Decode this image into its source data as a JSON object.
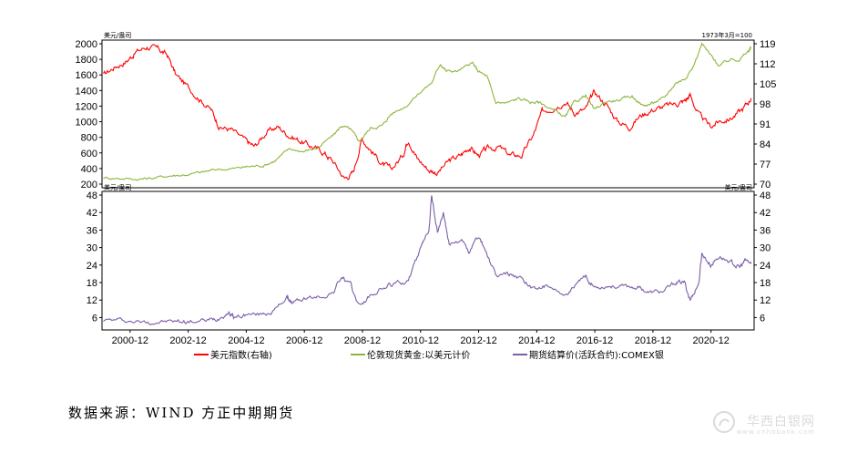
{
  "chart_data": [
    {
      "type": "line",
      "panel": "top",
      "left_unit": "美元/盎司",
      "right_unit": "1973年3月=100",
      "left_ylim": [
        200,
        2000
      ],
      "left_ticks": [
        200,
        400,
        600,
        800,
        1000,
        1200,
        1400,
        1600,
        1800,
        2000
      ],
      "right_ylim": [
        70,
        119
      ],
      "right_ticks": [
        70,
        77,
        84,
        91,
        98,
        105,
        112,
        119
      ],
      "series": [
        {
          "name": "美元指数(右轴)",
          "axis": "right",
          "color": "#ff0000",
          "points": [
            [
              2000.0,
              108
            ],
            [
              2000.4,
              111
            ],
            [
              2000.8,
              113
            ],
            [
              2001.1,
              116
            ],
            [
              2001.5,
              118
            ],
            [
              2001.9,
              117
            ],
            [
              2002.2,
              115
            ],
            [
              2002.5,
              108
            ],
            [
              2002.9,
              104
            ],
            [
              2003.3,
              100
            ],
            [
              2003.7,
              96
            ],
            [
              2004.0,
              90
            ],
            [
              2004.4,
              89
            ],
            [
              2004.9,
              85
            ],
            [
              2005.2,
              83
            ],
            [
              2005.6,
              88
            ],
            [
              2006.0,
              90
            ],
            [
              2006.4,
              87
            ],
            [
              2006.8,
              85
            ],
            [
              2007.2,
              83
            ],
            [
              2007.6,
              81
            ],
            [
              2007.9,
              78
            ],
            [
              2008.3,
              72
            ],
            [
              2008.6,
              74
            ],
            [
              2008.9,
              86
            ],
            [
              2009.2,
              82
            ],
            [
              2009.6,
              77
            ],
            [
              2009.9,
              75
            ],
            [
              2010.3,
              80
            ],
            [
              2010.5,
              86
            ],
            [
              2010.8,
              79
            ],
            [
              2011.2,
              75
            ],
            [
              2011.5,
              74
            ],
            [
              2011.9,
              78
            ],
            [
              2012.3,
              80
            ],
            [
              2012.6,
              83
            ],
            [
              2012.9,
              80
            ],
            [
              2013.2,
              82
            ],
            [
              2013.6,
              83
            ],
            [
              2014.0,
              80
            ],
            [
              2014.4,
              80
            ],
            [
              2014.8,
              87
            ],
            [
              2015.1,
              95
            ],
            [
              2015.5,
              97
            ],
            [
              2015.9,
              99
            ],
            [
              2016.2,
              95
            ],
            [
              2016.6,
              96
            ],
            [
              2016.9,
              102
            ],
            [
              2017.3,
              98
            ],
            [
              2017.7,
              92
            ],
            [
              2018.1,
              90
            ],
            [
              2018.5,
              94
            ],
            [
              2018.9,
              96
            ],
            [
              2019.3,
              97
            ],
            [
              2019.7,
              98
            ],
            [
              2020.0,
              99
            ],
            [
              2020.2,
              101
            ],
            [
              2020.5,
              94
            ],
            [
              2020.9,
              90
            ],
            [
              2021.2,
              92
            ],
            [
              2021.6,
              93
            ],
            [
              2022.0,
              96
            ],
            [
              2022.3,
              100
            ]
          ]
        },
        {
          "name": "伦敦现货黄金:以美元计价",
          "axis": "left",
          "color": "#8db53c",
          "points": [
            [
              2000.0,
              282
            ],
            [
              2000.6,
              275
            ],
            [
              2001.2,
              265
            ],
            [
              2001.7,
              278
            ],
            [
              2002.3,
              310
            ],
            [
              2002.8,
              320
            ],
            [
              2003.4,
              350
            ],
            [
              2003.9,
              390
            ],
            [
              2004.5,
              400
            ],
            [
              2005.0,
              425
            ],
            [
              2005.5,
              440
            ],
            [
              2005.9,
              500
            ],
            [
              2006.4,
              650
            ],
            [
              2006.9,
              620
            ],
            [
              2007.4,
              670
            ],
            [
              2007.9,
              820
            ],
            [
              2008.2,
              950
            ],
            [
              2008.5,
              900
            ],
            [
              2008.8,
              750
            ],
            [
              2009.2,
              920
            ],
            [
              2009.6,
              950
            ],
            [
              2009.9,
              1100
            ],
            [
              2010.4,
              1200
            ],
            [
              2010.9,
              1380
            ],
            [
              2011.3,
              1500
            ],
            [
              2011.6,
              1750
            ],
            [
              2011.8,
              1650
            ],
            [
              2012.2,
              1650
            ],
            [
              2012.7,
              1750
            ],
            [
              2012.9,
              1650
            ],
            [
              2013.2,
              1580
            ],
            [
              2013.5,
              1250
            ],
            [
              2013.9,
              1240
            ],
            [
              2014.3,
              1300
            ],
            [
              2014.7,
              1250
            ],
            [
              2015.0,
              1250
            ],
            [
              2015.5,
              1150
            ],
            [
              2015.9,
              1060
            ],
            [
              2016.2,
              1240
            ],
            [
              2016.6,
              1340
            ],
            [
              2016.9,
              1150
            ],
            [
              2017.3,
              1260
            ],
            [
              2017.8,
              1280
            ],
            [
              2018.2,
              1330
            ],
            [
              2018.6,
              1200
            ],
            [
              2018.9,
              1240
            ],
            [
              2019.3,
              1300
            ],
            [
              2019.7,
              1500
            ],
            [
              2020.0,
              1550
            ],
            [
              2020.3,
              1700
            ],
            [
              2020.6,
              2000
            ],
            [
              2020.9,
              1850
            ],
            [
              2021.2,
              1720
            ],
            [
              2021.6,
              1800
            ],
            [
              2021.9,
              1800
            ],
            [
              2022.2,
              1900
            ],
            [
              2022.3,
              1950
            ]
          ]
        }
      ]
    },
    {
      "type": "line",
      "panel": "bottom",
      "left_unit": "美元/盎司",
      "right_unit": "美元/盎司",
      "ylim": [
        3,
        48
      ],
      "ticks": [
        6,
        12,
        18,
        24,
        30,
        36,
        42,
        48
      ],
      "x_ticks": [
        "2000-12",
        "2002-12",
        "2004-12",
        "2006-12",
        "2008-12",
        "2010-12",
        "2012-12",
        "2014-12",
        "2016-12",
        "2018-12",
        "2020-12"
      ],
      "series": [
        {
          "name": "期货结算价(活跃合约):COMEX银",
          "axis": "left",
          "color": "#7b5ea7",
          "points": [
            [
              2000.0,
              5.2
            ],
            [
              2000.7,
              5.0
            ],
            [
              2001.4,
              4.4
            ],
            [
              2001.9,
              4.6
            ],
            [
              2002.5,
              4.7
            ],
            [
              2002.9,
              4.6
            ],
            [
              2003.5,
              4.9
            ],
            [
              2003.9,
              5.5
            ],
            [
              2004.3,
              8.0
            ],
            [
              2004.5,
              6.0
            ],
            [
              2004.9,
              7.0
            ],
            [
              2005.5,
              7.2
            ],
            [
              2005.9,
              8.5
            ],
            [
              2006.3,
              13.0
            ],
            [
              2006.5,
              11.0
            ],
            [
              2006.9,
              12.5
            ],
            [
              2007.4,
              13.0
            ],
            [
              2007.9,
              14.5
            ],
            [
              2008.2,
              20.0
            ],
            [
              2008.5,
              17.0
            ],
            [
              2008.8,
              10.0
            ],
            [
              2009.2,
              13.5
            ],
            [
              2009.7,
              16.5
            ],
            [
              2010.0,
              17.5
            ],
            [
              2010.5,
              18.5
            ],
            [
              2010.9,
              29.0
            ],
            [
              2011.2,
              36.0
            ],
            [
              2011.3,
              48.0
            ],
            [
              2011.5,
              35.0
            ],
            [
              2011.7,
              42.0
            ],
            [
              2011.9,
              31.0
            ],
            [
              2012.3,
              33.0
            ],
            [
              2012.6,
              28.0
            ],
            [
              2012.9,
              34.0
            ],
            [
              2013.2,
              28.0
            ],
            [
              2013.5,
              20.0
            ],
            [
              2013.9,
              21.0
            ],
            [
              2014.3,
              20.0
            ],
            [
              2014.8,
              16.0
            ],
            [
              2015.2,
              16.5
            ],
            [
              2015.9,
              14.0
            ],
            [
              2016.3,
              17.0
            ],
            [
              2016.6,
              20.0
            ],
            [
              2016.9,
              16.5
            ],
            [
              2017.4,
              17.0
            ],
            [
              2017.9,
              16.5
            ],
            [
              2018.4,
              16.5
            ],
            [
              2018.8,
              14.5
            ],
            [
              2019.3,
              15.0
            ],
            [
              2019.7,
              18.0
            ],
            [
              2020.0,
              18.0
            ],
            [
              2020.2,
              12.0
            ],
            [
              2020.5,
              18.0
            ],
            [
              2020.6,
              28.0
            ],
            [
              2020.9,
              24.0
            ],
            [
              2021.2,
              27.0
            ],
            [
              2021.6,
              25.0
            ],
            [
              2021.9,
              23.0
            ],
            [
              2022.1,
              25.5
            ],
            [
              2022.3,
              24.5
            ]
          ]
        }
      ]
    }
  ],
  "source_text": "数据来源：WIND  方正中期期货",
  "watermark": {
    "text": "华西白银网",
    "sub": "www.cnhbbank.com"
  }
}
